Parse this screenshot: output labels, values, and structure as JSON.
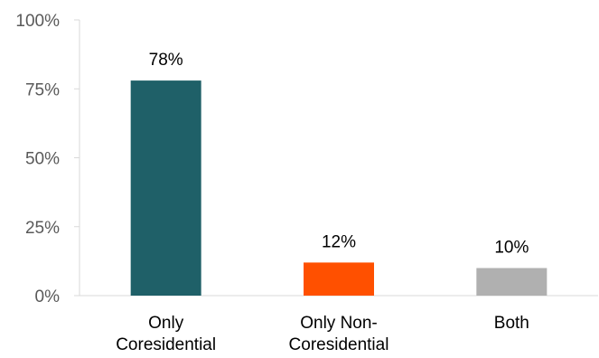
{
  "chart_data": {
    "type": "bar",
    "categories": [
      [
        "Only",
        "Coresidential"
      ],
      [
        "Only Non-",
        "Coresidential"
      ],
      [
        "Both"
      ]
    ],
    "values": [
      78,
      12,
      10
    ],
    "data_labels": [
      "78%",
      "12%",
      "10%"
    ],
    "colors": [
      "#1f6068",
      "#ff5000",
      "#b0b0b0"
    ],
    "ylim": [
      0,
      100
    ],
    "yticks": [
      0,
      25,
      50,
      75,
      100
    ],
    "ytick_labels": [
      "0%",
      "25%",
      "50%",
      "75%",
      "100%"
    ],
    "grid": false,
    "legend": "none",
    "axis_color": "#d9d9d9"
  }
}
